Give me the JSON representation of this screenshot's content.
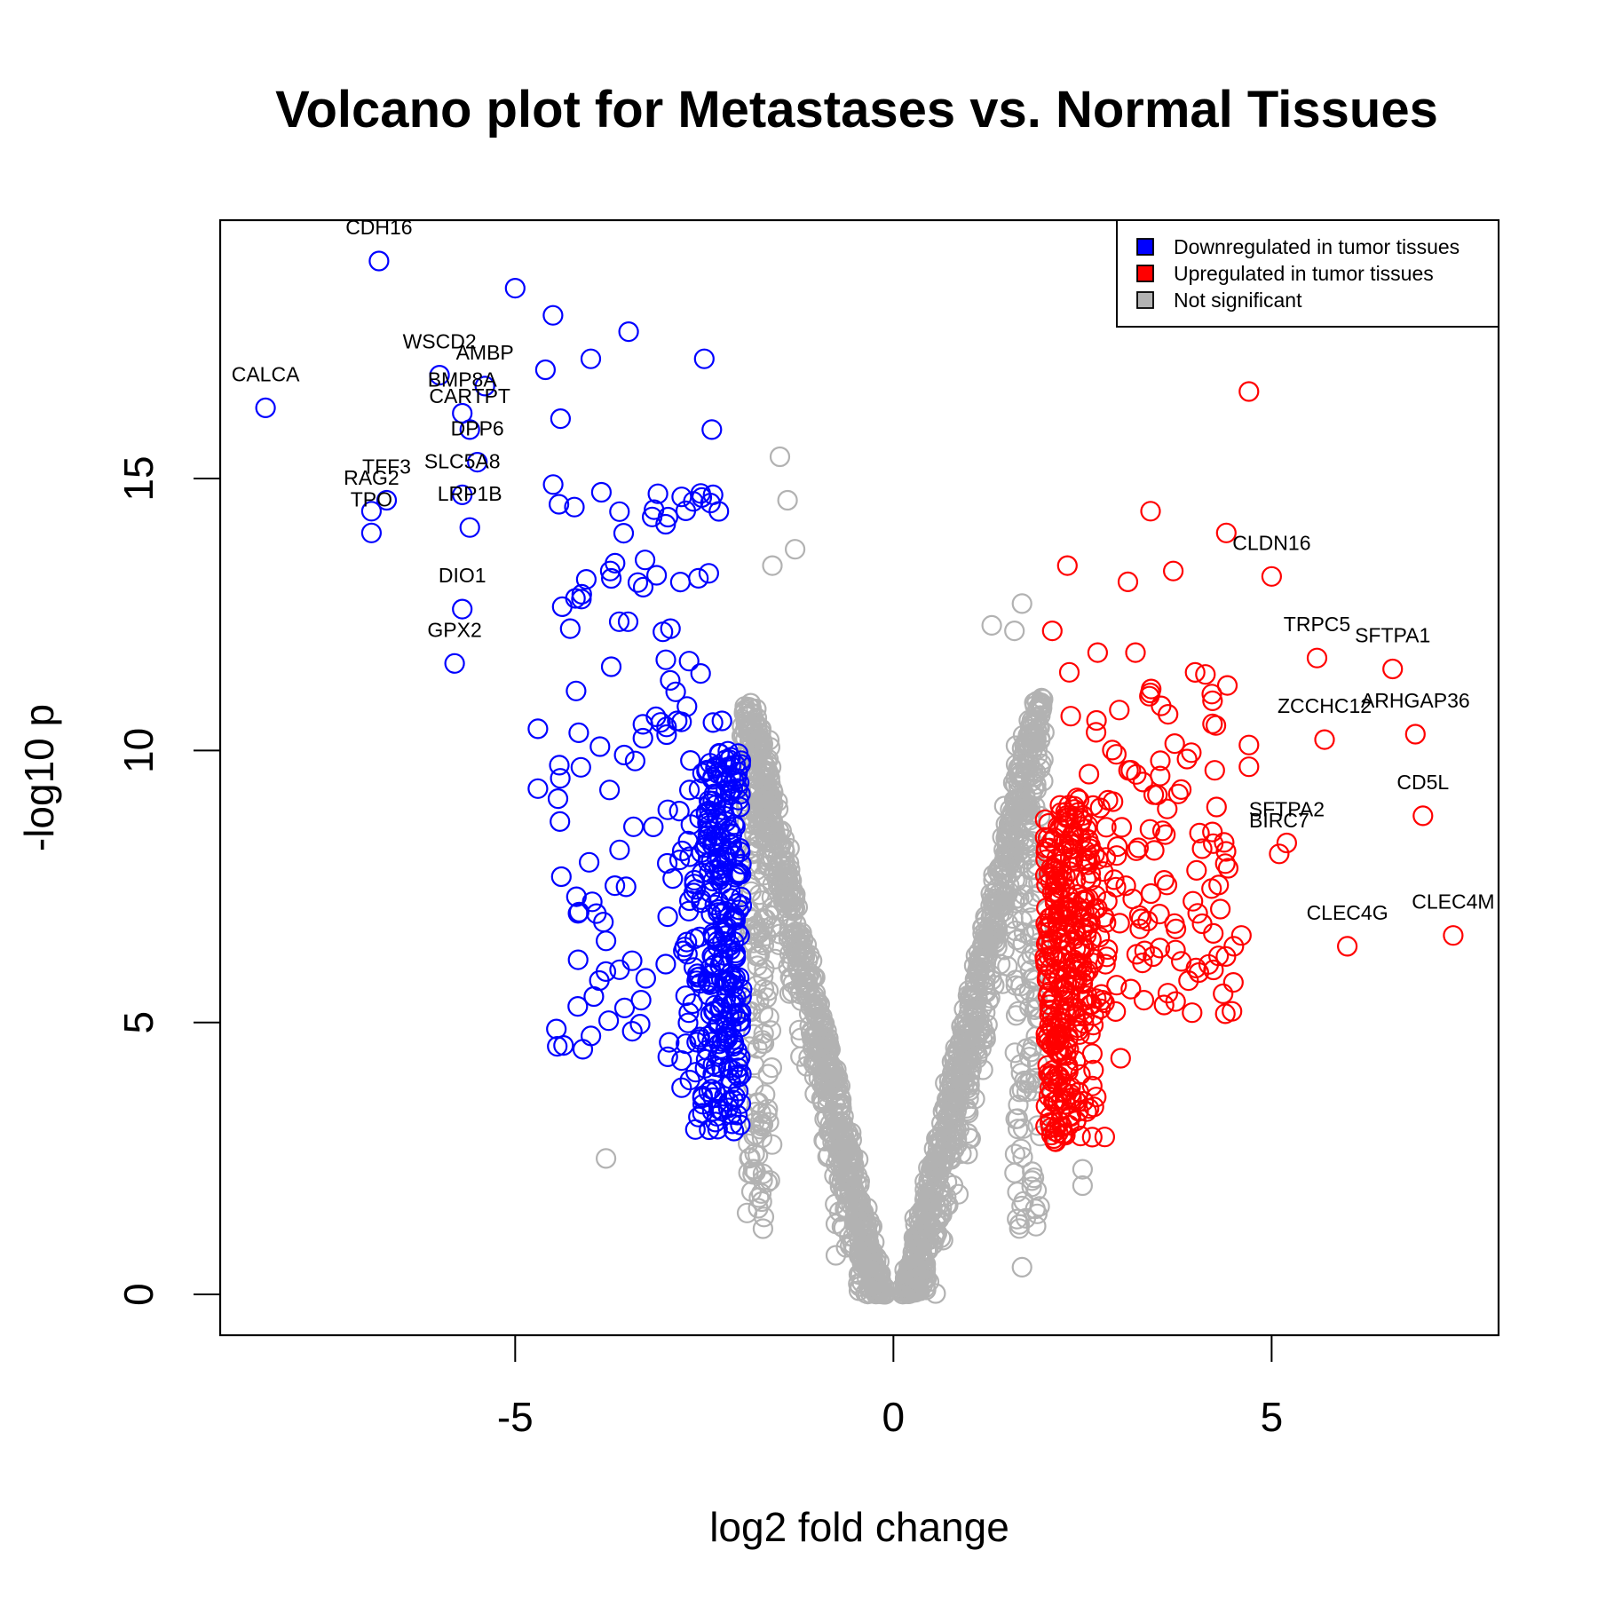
{
  "chart_data": {
    "type": "scatter",
    "title": "Volcano plot for Metastases vs. Normal Tissues",
    "xlabel": "log2 fold change",
    "ylabel": "-log10 p",
    "xlim": [
      -8.9,
      8.0
    ],
    "ylim": [
      -0.75,
      19.75
    ],
    "x_ticks": [
      -5,
      0,
      5
    ],
    "y_ticks": [
      0,
      5,
      10,
      15
    ],
    "grid": false,
    "legend_position": "top-right",
    "colors": {
      "down": "#0000ff",
      "up": "#ff0000",
      "ns": "#b2b2b2"
    },
    "legend": [
      {
        "label": "Downregulated in tumor tissues",
        "series": "down"
      },
      {
        "label": "Upregulated in tumor tissues",
        "series": "up"
      },
      {
        "label": "Not significant",
        "series": "ns"
      }
    ],
    "highlighted_points": [
      {
        "gene": "CDH16",
        "x": -6.8,
        "y": 19.0,
        "series": "down"
      },
      {
        "gene": "CALCA",
        "x": -8.3,
        "y": 16.3,
        "series": "down"
      },
      {
        "gene": "WSCD2",
        "x": -6.0,
        "y": 16.9,
        "series": "down"
      },
      {
        "gene": "AMBP",
        "x": -5.4,
        "y": 16.7,
        "series": "down"
      },
      {
        "gene": "BMP8A",
        "x": -5.7,
        "y": 16.2,
        "series": "down"
      },
      {
        "gene": "CARTPT",
        "x": -5.6,
        "y": 15.9,
        "series": "down"
      },
      {
        "gene": "DPP6",
        "x": -5.5,
        "y": 15.3,
        "series": "down"
      },
      {
        "gene": "SLC5A8",
        "x": -5.7,
        "y": 14.7,
        "series": "down"
      },
      {
        "gene": "TFF3",
        "x": -6.7,
        "y": 14.6,
        "series": "down"
      },
      {
        "gene": "RAG2",
        "x": -6.9,
        "y": 14.4,
        "series": "down"
      },
      {
        "gene": "TPO",
        "x": -6.9,
        "y": 14.0,
        "series": "down"
      },
      {
        "gene": "LRP1B",
        "x": -5.6,
        "y": 14.1,
        "series": "down"
      },
      {
        "gene": "DIO1",
        "x": -5.7,
        "y": 12.6,
        "series": "down"
      },
      {
        "gene": "GPX2",
        "x": -5.8,
        "y": 11.6,
        "series": "down"
      },
      {
        "gene": "CLDN16",
        "x": 5.0,
        "y": 13.2,
        "series": "up"
      },
      {
        "gene": "TRPC5",
        "x": 5.6,
        "y": 11.7,
        "series": "up"
      },
      {
        "gene": "SFTPA1",
        "x": 6.6,
        "y": 11.5,
        "series": "up"
      },
      {
        "gene": "ZCCHC12",
        "x": 5.7,
        "y": 10.2,
        "series": "up"
      },
      {
        "gene": "ARHGAP36",
        "x": 6.9,
        "y": 10.3,
        "series": "up"
      },
      {
        "gene": "CD5L",
        "x": 7.0,
        "y": 8.8,
        "series": "up"
      },
      {
        "gene": "SFTPA2",
        "x": 5.2,
        "y": 8.3,
        "series": "up"
      },
      {
        "gene": "BIRC7",
        "x": 5.1,
        "y": 8.1,
        "series": "up"
      },
      {
        "gene": "CLEC4G",
        "x": 6.0,
        "y": 6.4,
        "series": "up"
      },
      {
        "gene": "CLEC4M",
        "x": 7.4,
        "y": 6.6,
        "series": "up"
      }
    ],
    "extra_points": [
      {
        "x": -5.0,
        "y": 18.5,
        "series": "down"
      },
      {
        "x": -4.5,
        "y": 18.0,
        "series": "down"
      },
      {
        "x": -3.5,
        "y": 17.7,
        "series": "down"
      },
      {
        "x": -2.5,
        "y": 17.2,
        "series": "down"
      },
      {
        "x": -4.6,
        "y": 17.0,
        "series": "down"
      },
      {
        "x": -4.0,
        "y": 17.2,
        "series": "down"
      },
      {
        "x": -4.4,
        "y": 16.1,
        "series": "down"
      },
      {
        "x": -2.4,
        "y": 15.9,
        "series": "down"
      },
      {
        "x": -4.7,
        "y": 10.4,
        "series": "down"
      },
      {
        "x": -4.7,
        "y": 9.3,
        "series": "down"
      },
      {
        "x": -3.8,
        "y": 6.5,
        "series": "down"
      },
      {
        "x": -2.8,
        "y": 4.3,
        "series": "down"
      },
      {
        "x": -2.8,
        "y": 3.8,
        "series": "down"
      },
      {
        "x": 4.7,
        "y": 16.6,
        "series": "up"
      },
      {
        "x": 3.4,
        "y": 14.4,
        "series": "up"
      },
      {
        "x": 4.4,
        "y": 14.0,
        "series": "up"
      },
      {
        "x": 2.3,
        "y": 13.4,
        "series": "up"
      },
      {
        "x": 3.7,
        "y": 13.3,
        "series": "up"
      },
      {
        "x": 3.1,
        "y": 13.1,
        "series": "up"
      },
      {
        "x": 2.1,
        "y": 12.2,
        "series": "up"
      },
      {
        "x": 2.7,
        "y": 11.8,
        "series": "up"
      },
      {
        "x": 3.2,
        "y": 11.8,
        "series": "up"
      },
      {
        "x": 4.7,
        "y": 10.1,
        "series": "up"
      },
      {
        "x": 4.7,
        "y": 9.7,
        "series": "up"
      },
      {
        "x": 4.6,
        "y": 6.6,
        "series": "up"
      },
      {
        "x": 4.5,
        "y": 6.4,
        "series": "up"
      },
      {
        "x": 4.0,
        "y": 6.0,
        "series": "up"
      },
      {
        "x": -1.5,
        "y": 15.4,
        "series": "ns"
      },
      {
        "x": -1.4,
        "y": 14.6,
        "series": "ns"
      },
      {
        "x": -1.3,
        "y": 13.7,
        "series": "ns"
      },
      {
        "x": -1.6,
        "y": 13.4,
        "series": "ns"
      },
      {
        "x": -3.8,
        "y": 2.5,
        "series": "ns"
      },
      {
        "x": 1.7,
        "y": 12.7,
        "series": "ns"
      },
      {
        "x": 1.6,
        "y": 12.2,
        "series": "ns"
      },
      {
        "x": 1.3,
        "y": 12.3,
        "series": "ns"
      },
      {
        "x": 2.5,
        "y": 2.3,
        "series": "ns"
      },
      {
        "x": 2.5,
        "y": 2.0,
        "series": "ns"
      },
      {
        "x": 1.7,
        "y": 0.5,
        "series": "ns"
      }
    ],
    "bulk_description": {
      "fold_change_threshold": 2,
      "pvalue_axis_floor": 3
    }
  }
}
